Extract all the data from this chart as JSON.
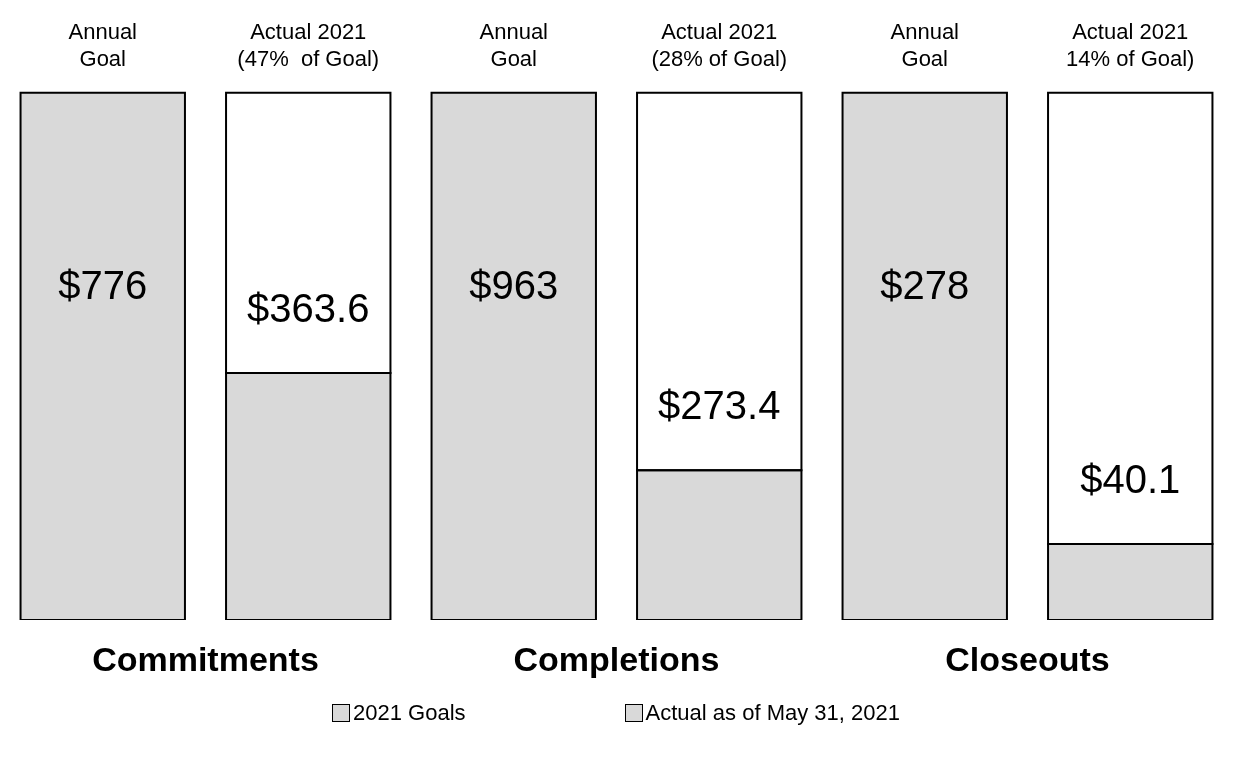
{
  "chart_data": [
    {
      "type": "bar",
      "categories": [
        "Annual\nGoal",
        "Actual 2021\n(47%  of Goal)"
      ],
      "xlabel": "Commitments",
      "series": [
        {
          "color": "#d9d9d9",
          "values": [
            776,
            null
          ],
          "value_labels": [
            "$776",
            null
          ]
        },
        {
          "color": "#d9d9d9",
          "values": [
            null,
            363.6
          ],
          "value_labels": [
            null,
            "$363.6"
          ]
        },
        {
          "color": "#ffffff",
          "values": [
            null,
            412.4
          ]
        }
      ],
      "stacked": true
    },
    {
      "type": "bar",
      "categories": [
        "Annual\nGoal",
        "Actual 2021\n(28% of Goal)"
      ],
      "xlabel": "Completions",
      "series": [
        {
          "name": "2021 Goals",
          "color": "#d9d9d9",
          "values": [
            963,
            null
          ],
          "value_labels": [
            "$963",
            null
          ]
        },
        {
          "name": "Actual as of  May 31, 2021",
          "color": "#d9d9d9",
          "values": [
            null,
            273.4
          ],
          "value_labels": [
            null,
            "$273.4"
          ]
        },
        {
          "color": "#ffffff",
          "values": [
            null,
            689.6
          ]
        }
      ],
      "stacked": true,
      "legend": "bottom"
    },
    {
      "type": "bar",
      "categories": [
        "Annual\nGoal",
        "Actual 2021\n14% of Goal)"
      ],
      "xlabel": "Closeouts",
      "series": [
        {
          "color": "#d9d9d9",
          "values": [
            278,
            null
          ],
          "value_labels": [
            "$278",
            null
          ]
        },
        {
          "color": "#d9d9d9",
          "values": [
            null,
            40.1
          ],
          "value_labels": [
            null,
            "$40.1"
          ]
        },
        {
          "color": "#ffffff",
          "values": [
            null,
            237.9
          ]
        }
      ],
      "stacked": true
    }
  ]
}
